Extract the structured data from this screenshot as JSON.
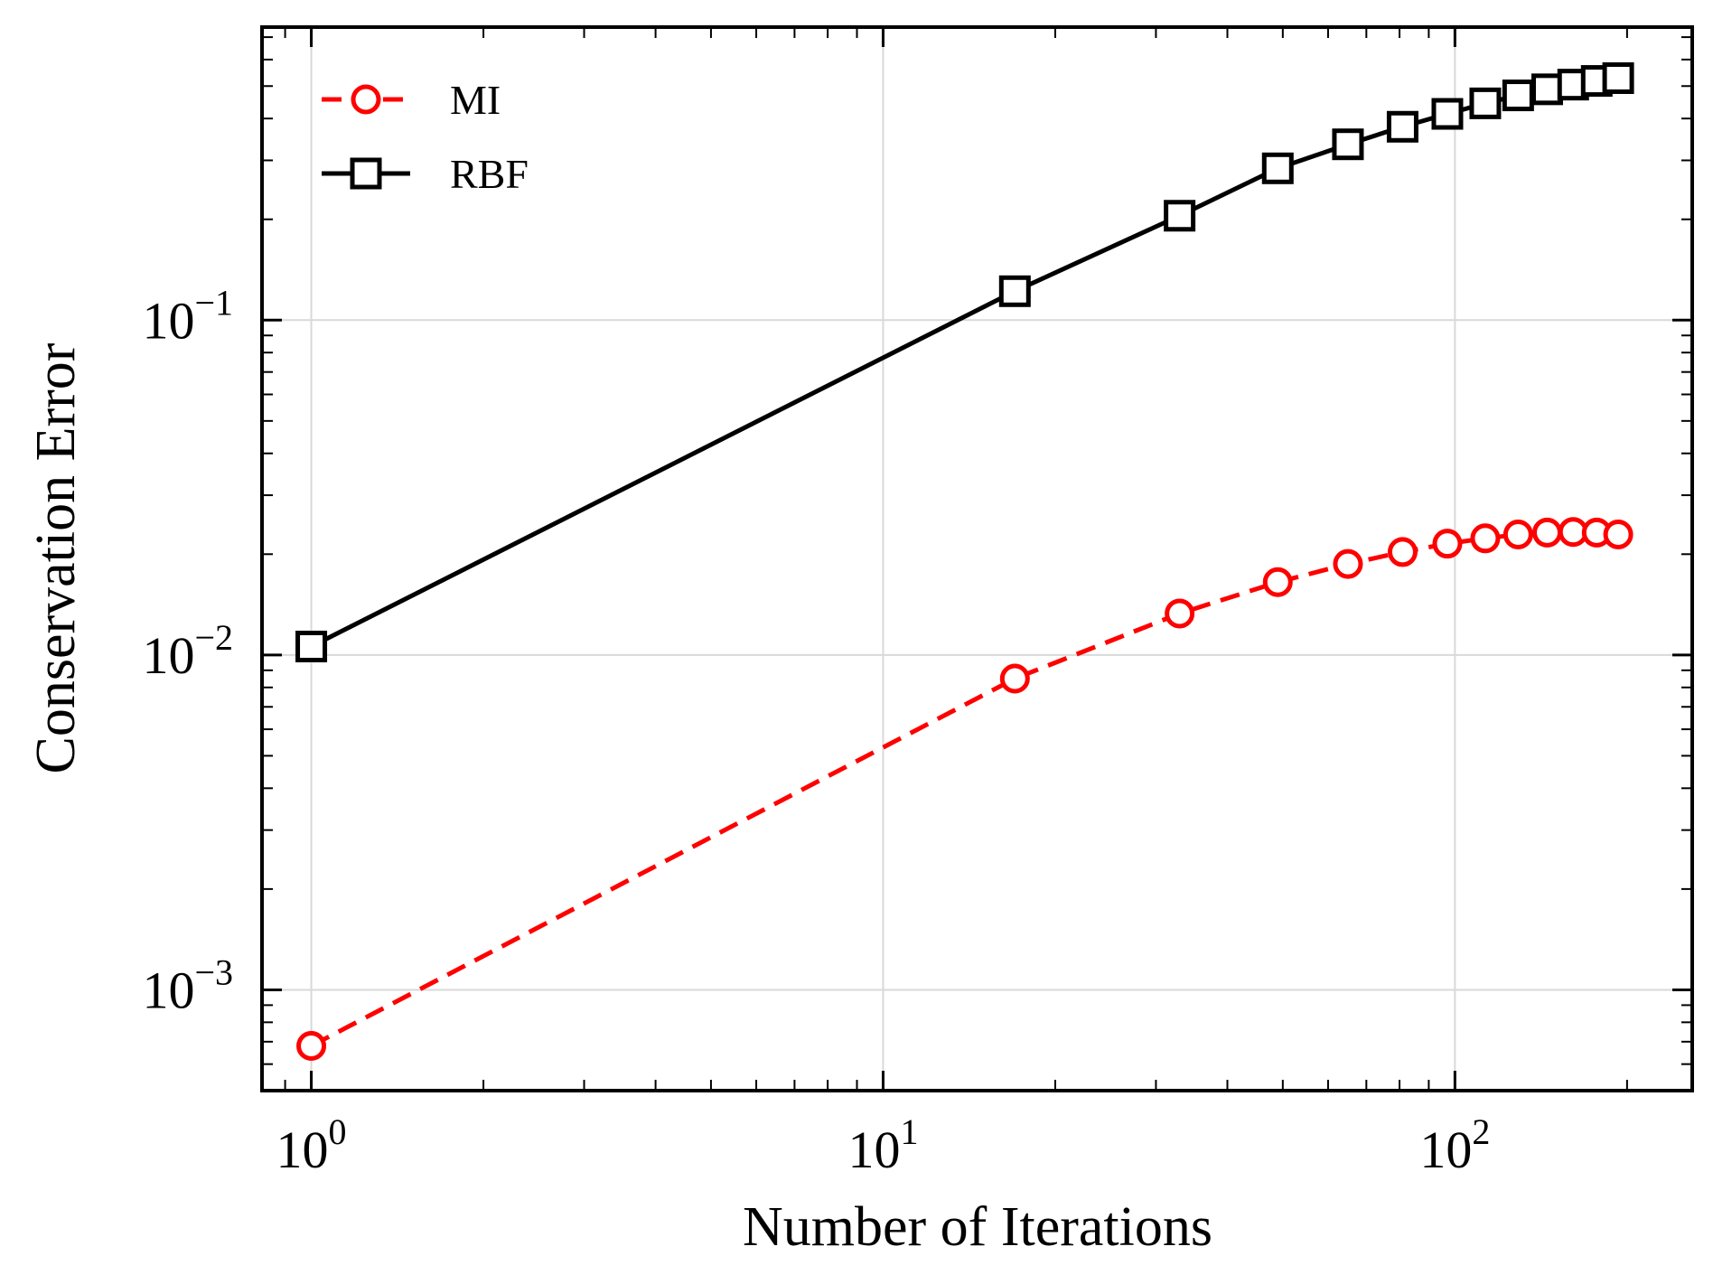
{
  "chart_data": {
    "type": "line",
    "title": "",
    "xlabel": "Number of Iterations",
    "ylabel": "Conservation Error",
    "xscale": "log",
    "yscale": "log",
    "xlim": [
      0.82,
      260
    ],
    "ylim": [
      0.0005,
      0.75
    ],
    "grid": true,
    "legend_position": "top-left",
    "x_ticks": [
      {
        "value": 1,
        "base": "10",
        "exp": "0"
      },
      {
        "value": 10,
        "base": "10",
        "exp": "1"
      },
      {
        "value": 100,
        "base": "10",
        "exp": "2"
      }
    ],
    "y_ticks": [
      {
        "value": 0.001,
        "base": "10",
        "exp": "−3"
      },
      {
        "value": 0.01,
        "base": "10",
        "exp": "−2"
      },
      {
        "value": 0.1,
        "base": "10",
        "exp": "−1"
      }
    ],
    "series": [
      {
        "name": "MI",
        "color": "#ff0000",
        "line_style": "dashed",
        "marker": "circle",
        "x": [
          1,
          17,
          33,
          49,
          65,
          81,
          97,
          113,
          129,
          145,
          161,
          177,
          193
        ],
        "y": [
          0.00068,
          0.0085,
          0.0133,
          0.0165,
          0.0187,
          0.0203,
          0.0215,
          0.0223,
          0.0229,
          0.0232,
          0.0233,
          0.0232,
          0.0229
        ]
      },
      {
        "name": "RBF",
        "color": "#000000",
        "line_style": "solid",
        "marker": "square",
        "x": [
          1,
          17,
          33,
          49,
          65,
          81,
          97,
          113,
          129,
          145,
          161,
          177,
          193
        ],
        "y": [
          0.0106,
          0.122,
          0.205,
          0.284,
          0.335,
          0.378,
          0.413,
          0.444,
          0.469,
          0.489,
          0.505,
          0.518,
          0.528
        ]
      }
    ]
  }
}
